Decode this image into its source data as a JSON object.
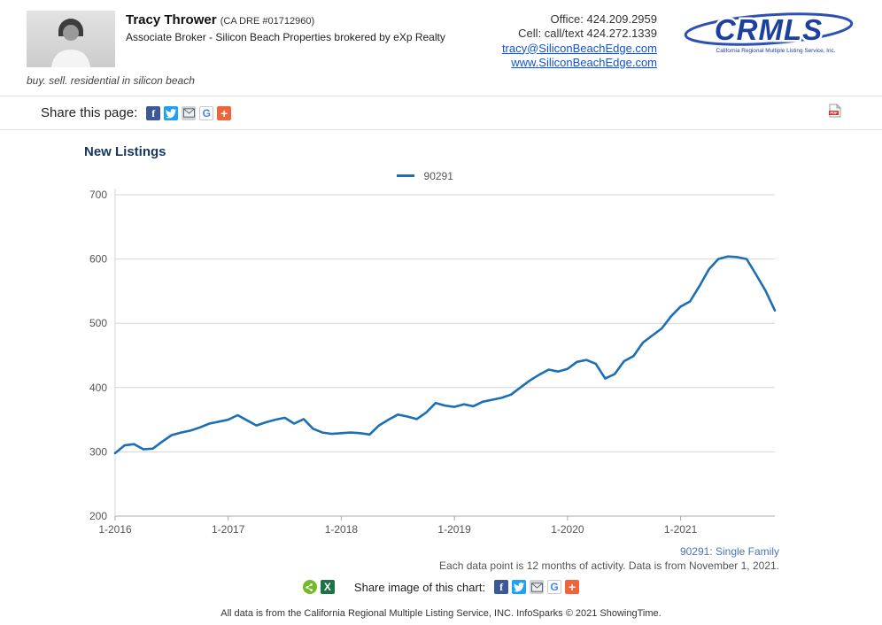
{
  "colors": {
    "link": "#1155CC",
    "title": "#17365D",
    "series_note": "#4A74B4",
    "line": "#1C6FB4",
    "logo_blue": "#1D3F9E"
  },
  "header": {
    "agent": {
      "name": "Tracy Thrower",
      "license": "(CA DRE #01712960)",
      "title": "Associate Broker - Silicon Beach Properties brokered by eXp Realty",
      "tagline": "buy. sell. residential in silicon beach"
    },
    "contact": {
      "office": "Office: 424.209.2959",
      "cell": "Cell: call/text 424.272.1339",
      "email": "tracy@SiliconBeachEdge.com",
      "website": "www.SiliconBeachEdge.com"
    },
    "logo": {
      "text": "CRMLS",
      "subtext": "California Regional Multiple Listing Service, Inc."
    }
  },
  "share_bar": {
    "label": "Share this page:",
    "icons": [
      "facebook-icon",
      "twitter-icon",
      "email-icon",
      "google-icon",
      "addthis-plus-icon"
    ],
    "pdf_icon": "pdf-icon"
  },
  "glyphs": {
    "facebook": "f",
    "google": "G",
    "plus": "+",
    "excel": "X"
  },
  "chart_data": {
    "type": "line",
    "title": "New Listings",
    "legend": [
      "90291"
    ],
    "legend_position": "top-center",
    "grid": "horizontal",
    "ylim": [
      200,
      700
    ],
    "yticks": [
      200,
      300,
      400,
      500,
      600,
      700
    ],
    "x_tick_positions": [
      0,
      12,
      24,
      36,
      48,
      60
    ],
    "x_tick_labels": [
      "1-2016",
      "1-2017",
      "1-2018",
      "1-2019",
      "1-2020",
      "1-2021"
    ],
    "series": [
      {
        "name": "90291",
        "color": "#1C6FB4",
        "x_start": "1-2016",
        "x_interval": "monthly",
        "values": [
          298,
          310,
          312,
          304,
          305,
          316,
          326,
          330,
          333,
          338,
          344,
          347,
          350,
          357,
          349,
          341,
          346,
          350,
          353,
          344,
          351,
          336,
          330,
          328,
          329,
          330,
          329,
          327,
          341,
          350,
          358,
          355,
          351,
          361,
          376,
          372,
          370,
          374,
          371,
          378,
          381,
          384,
          389,
          400,
          411,
          420,
          428,
          425,
          429,
          440,
          443,
          437,
          414,
          421,
          441,
          449,
          470,
          481,
          492,
          511,
          526,
          534,
          558,
          584,
          600,
          604,
          603,
          600,
          576,
          551,
          520
        ]
      }
    ]
  },
  "footnote": {
    "series_label": "90291: Single Family",
    "data_note": "Each data point is 12 months of activity. Data is from November 1, 2021."
  },
  "share_chart": {
    "label": "Share image of this chart:",
    "icons": [
      "sharethis-icon",
      "excel-icon",
      "facebook-icon",
      "twitter-icon",
      "email-icon",
      "google-icon",
      "addthis-plus-icon"
    ]
  },
  "footer": {
    "text": "All data is from the California Regional Multiple Listing Service, INC. InfoSparks © 2021 ShowingTime."
  }
}
